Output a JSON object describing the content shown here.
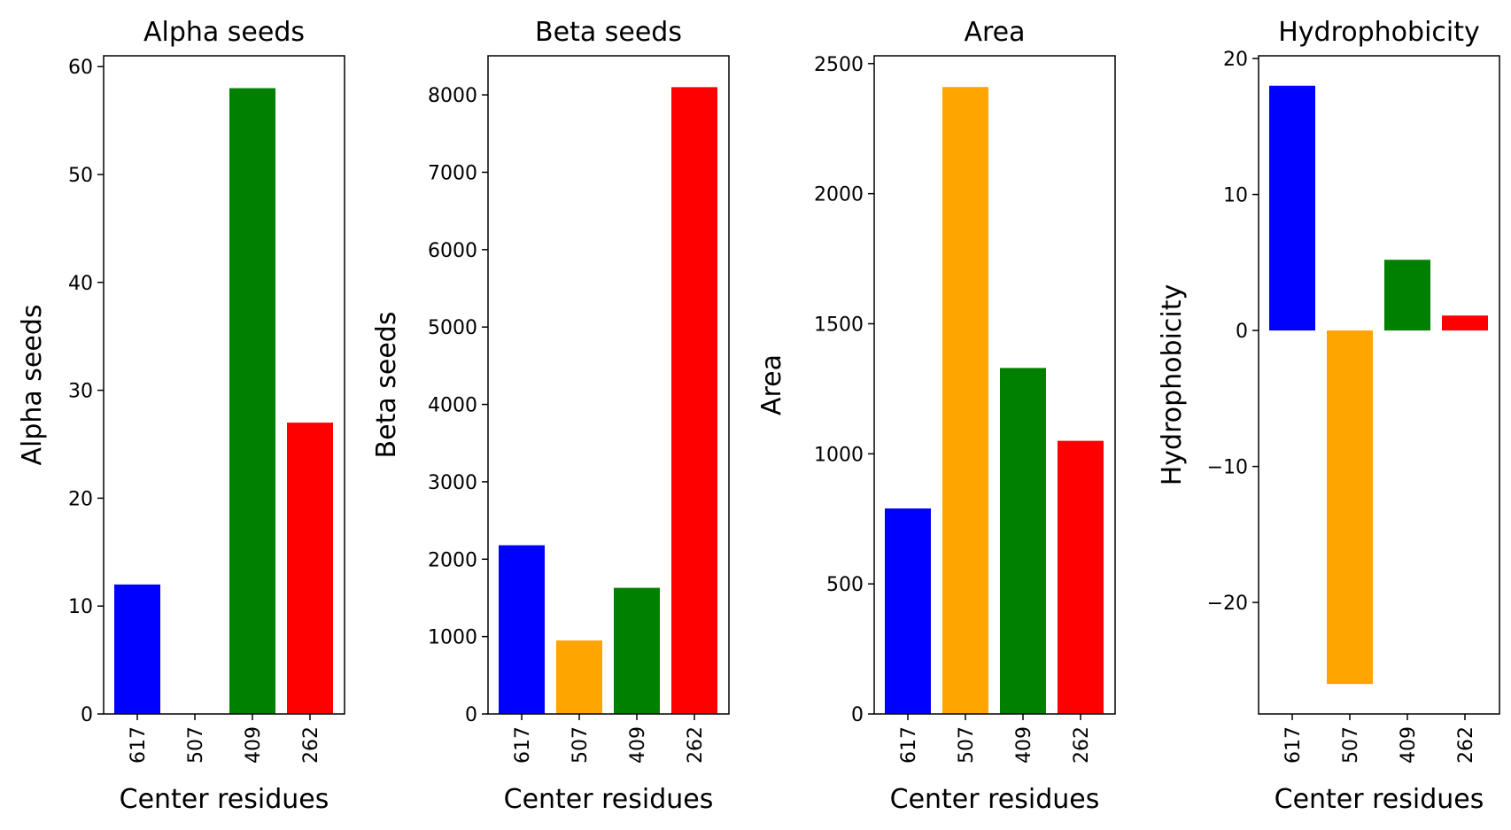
{
  "colors": [
    "#0000ff",
    "#ffa500",
    "#008000",
    "#ff0000"
  ],
  "chart_data": [
    {
      "type": "bar",
      "title": "Alpha seeds",
      "xlabel": "Center residues",
      "ylabel": "Alpha seeds",
      "categories": [
        "617",
        "507",
        "409",
        "262"
      ],
      "values": [
        12,
        0,
        58,
        27
      ],
      "ylim": [
        0,
        61
      ],
      "yticks": [
        0,
        10,
        20,
        30,
        40,
        50,
        60
      ],
      "ytick_labels": [
        "0",
        "10",
        "20",
        "30",
        "40",
        "50",
        "60"
      ],
      "grid": false,
      "legend": "none"
    },
    {
      "type": "bar",
      "title": "Beta seeds",
      "xlabel": "Center residues",
      "ylabel": "Beta seeds",
      "categories": [
        "617",
        "507",
        "409",
        "262"
      ],
      "values": [
        2180,
        950,
        1630,
        8100
      ],
      "ylim": [
        0,
        8505
      ],
      "yticks": [
        0,
        1000,
        2000,
        3000,
        4000,
        5000,
        6000,
        7000,
        8000
      ],
      "ytick_labels": [
        "0",
        "1000",
        "2000",
        "3000",
        "4000",
        "5000",
        "6000",
        "7000",
        "8000"
      ],
      "grid": false,
      "legend": "none"
    },
    {
      "type": "bar",
      "title": "Area",
      "xlabel": "Center residues",
      "ylabel": "Area",
      "categories": [
        "617",
        "507",
        "409",
        "262"
      ],
      "values": [
        790,
        2410,
        1330,
        1050
      ],
      "ylim": [
        0,
        2530
      ],
      "yticks": [
        0,
        500,
        1000,
        1500,
        2000,
        2500
      ],
      "ytick_labels": [
        "0",
        "500",
        "1000",
        "1500",
        "2000",
        "2500"
      ],
      "grid": false,
      "legend": "none"
    },
    {
      "type": "bar",
      "title": "Hydrophobicity",
      "xlabel": "Center residues",
      "ylabel": "Hydrophobicity",
      "categories": [
        "617",
        "507",
        "409",
        "262"
      ],
      "values": [
        18,
        -26,
        5.2,
        1.1
      ],
      "ylim": [
        -28.2,
        20.2
      ],
      "yticks": [
        -20,
        -10,
        0,
        10,
        20
      ],
      "ytick_labels": [
        "−20",
        "−10",
        "0",
        "10",
        "20"
      ],
      "grid": false,
      "legend": "none"
    }
  ]
}
